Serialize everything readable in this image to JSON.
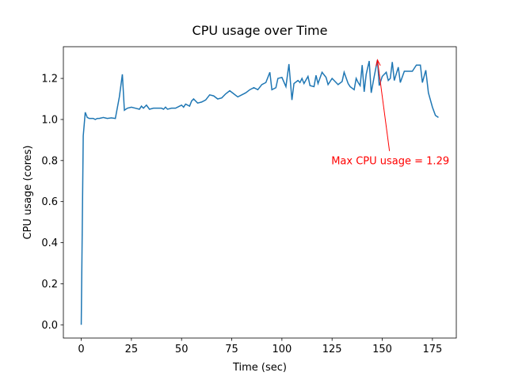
{
  "chart_data": {
    "type": "line",
    "title": "CPU usage over Time",
    "xlabel": "Time (sec)",
    "ylabel": "CPU usage (cores)",
    "x": [
      0,
      1,
      2,
      3,
      4,
      5,
      6,
      7,
      8,
      9,
      11,
      13,
      15,
      17,
      19,
      20.5,
      21.5,
      23,
      25,
      27,
      29,
      30,
      31,
      32.5,
      34,
      36,
      38,
      40,
      41,
      42,
      43,
      45,
      47,
      49,
      50,
      51,
      52,
      54,
      55,
      56,
      58,
      60,
      62,
      64,
      66,
      68,
      70,
      72,
      74,
      76,
      78,
      80,
      82,
      84,
      86,
      88,
      90,
      92,
      94,
      95,
      97,
      98,
      100,
      102,
      103.5,
      105,
      106,
      108,
      109,
      110,
      111,
      113,
      114,
      116,
      117,
      118,
      120,
      122,
      123,
      125,
      126,
      128,
      130,
      131,
      133,
      134,
      136,
      137,
      138,
      139,
      140,
      141,
      142,
      143.5,
      144.5,
      146,
      147.6,
      148.5,
      150,
      152,
      153,
      154,
      155,
      156,
      158,
      159,
      161,
      163,
      165,
      167,
      169,
      170,
      171.7,
      173,
      175,
      176.5,
      178
    ],
    "series": [
      {
        "name": "CPU usage",
        "color": "#1f77b4",
        "values": [
          0.0,
          0.92,
          1.035,
          1.01,
          1.005,
          1.005,
          1.005,
          1.0,
          1.005,
          1.005,
          1.01,
          1.005,
          1.008,
          1.005,
          1.11,
          1.22,
          1.045,
          1.055,
          1.06,
          1.055,
          1.05,
          1.065,
          1.055,
          1.07,
          1.05,
          1.055,
          1.055,
          1.055,
          1.05,
          1.06,
          1.05,
          1.055,
          1.055,
          1.065,
          1.07,
          1.06,
          1.075,
          1.065,
          1.09,
          1.1,
          1.08,
          1.085,
          1.095,
          1.12,
          1.115,
          1.1,
          1.105,
          1.125,
          1.14,
          1.125,
          1.11,
          1.12,
          1.13,
          1.145,
          1.155,
          1.145,
          1.17,
          1.18,
          1.23,
          1.145,
          1.155,
          1.2,
          1.205,
          1.16,
          1.27,
          1.095,
          1.175,
          1.19,
          1.18,
          1.2,
          1.175,
          1.21,
          1.165,
          1.16,
          1.215,
          1.175,
          1.23,
          1.205,
          1.17,
          1.2,
          1.19,
          1.17,
          1.185,
          1.23,
          1.175,
          1.16,
          1.145,
          1.2,
          1.18,
          1.165,
          1.265,
          1.135,
          1.22,
          1.285,
          1.13,
          1.21,
          1.29,
          1.165,
          1.21,
          1.23,
          1.19,
          1.2,
          1.28,
          1.19,
          1.255,
          1.18,
          1.235,
          1.235,
          1.235,
          1.265,
          1.265,
          1.18,
          1.24,
          1.13,
          1.06,
          1.02,
          1.01
        ]
      }
    ],
    "xlim": [
      -8.9,
      186.9
    ],
    "ylim": [
      -0.0645,
      1.3545
    ],
    "xticks": [
      0,
      25,
      50,
      75,
      100,
      125,
      150,
      175
    ],
    "yticks": [
      {
        "value": 0,
        "label": "0.0"
      },
      0.2,
      0.4,
      0.6,
      0.8,
      {
        "value": 1,
        "label": "1.0"
      },
      1.2
    ],
    "annotation": {
      "text": "Max CPU usage = 1.29",
      "xy": [
        147.6,
        1.29
      ],
      "xytext": [
        154,
        0.8
      ],
      "color": "#ff0000"
    }
  }
}
